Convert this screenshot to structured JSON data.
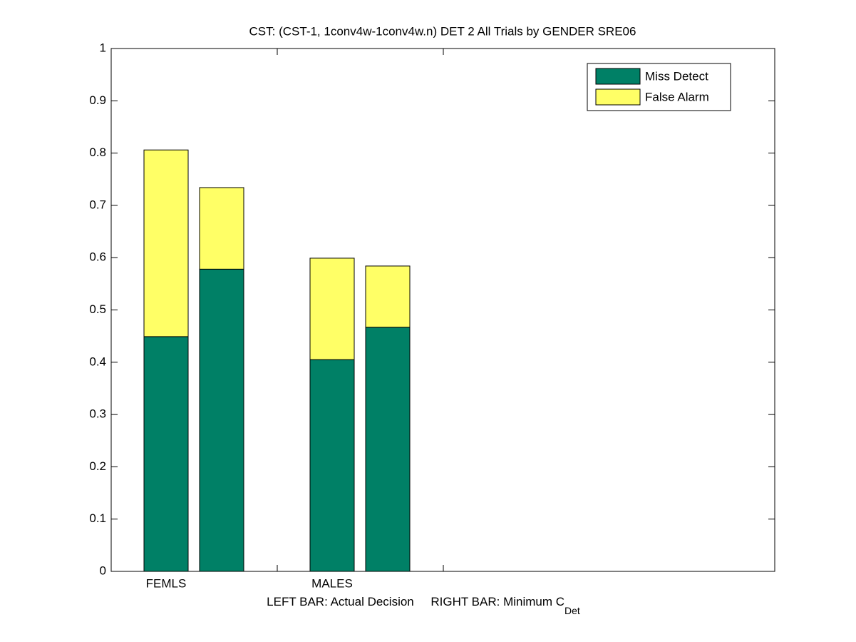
{
  "chart_data": {
    "type": "stacked_bar",
    "title": "CST: (CST-1, 1conv4w-1conv4w.n) DET 2 All Trials by GENDER SRE06",
    "xlabel": "LEFT BAR: Actual Decision     RIGHT BAR: Minimum C",
    "xlabel_subscript": "Det",
    "categories": [
      "FEMLS",
      null,
      "MALES",
      null
    ],
    "series": [
      {
        "name": "Miss Detect",
        "color": "#008066",
        "values": [
          0.449,
          0.578,
          0.405,
          0.467
        ]
      },
      {
        "name": "False Alarm",
        "color": "#ffff66",
        "values": [
          0.357,
          0.156,
          0.194,
          0.117
        ]
      }
    ],
    "ylim": [
      0,
      1
    ],
    "yticks": [
      0,
      0.1,
      0.2,
      0.3,
      0.4,
      0.5,
      0.6,
      0.7,
      0.8,
      0.9,
      1
    ],
    "legend": "top-right"
  }
}
